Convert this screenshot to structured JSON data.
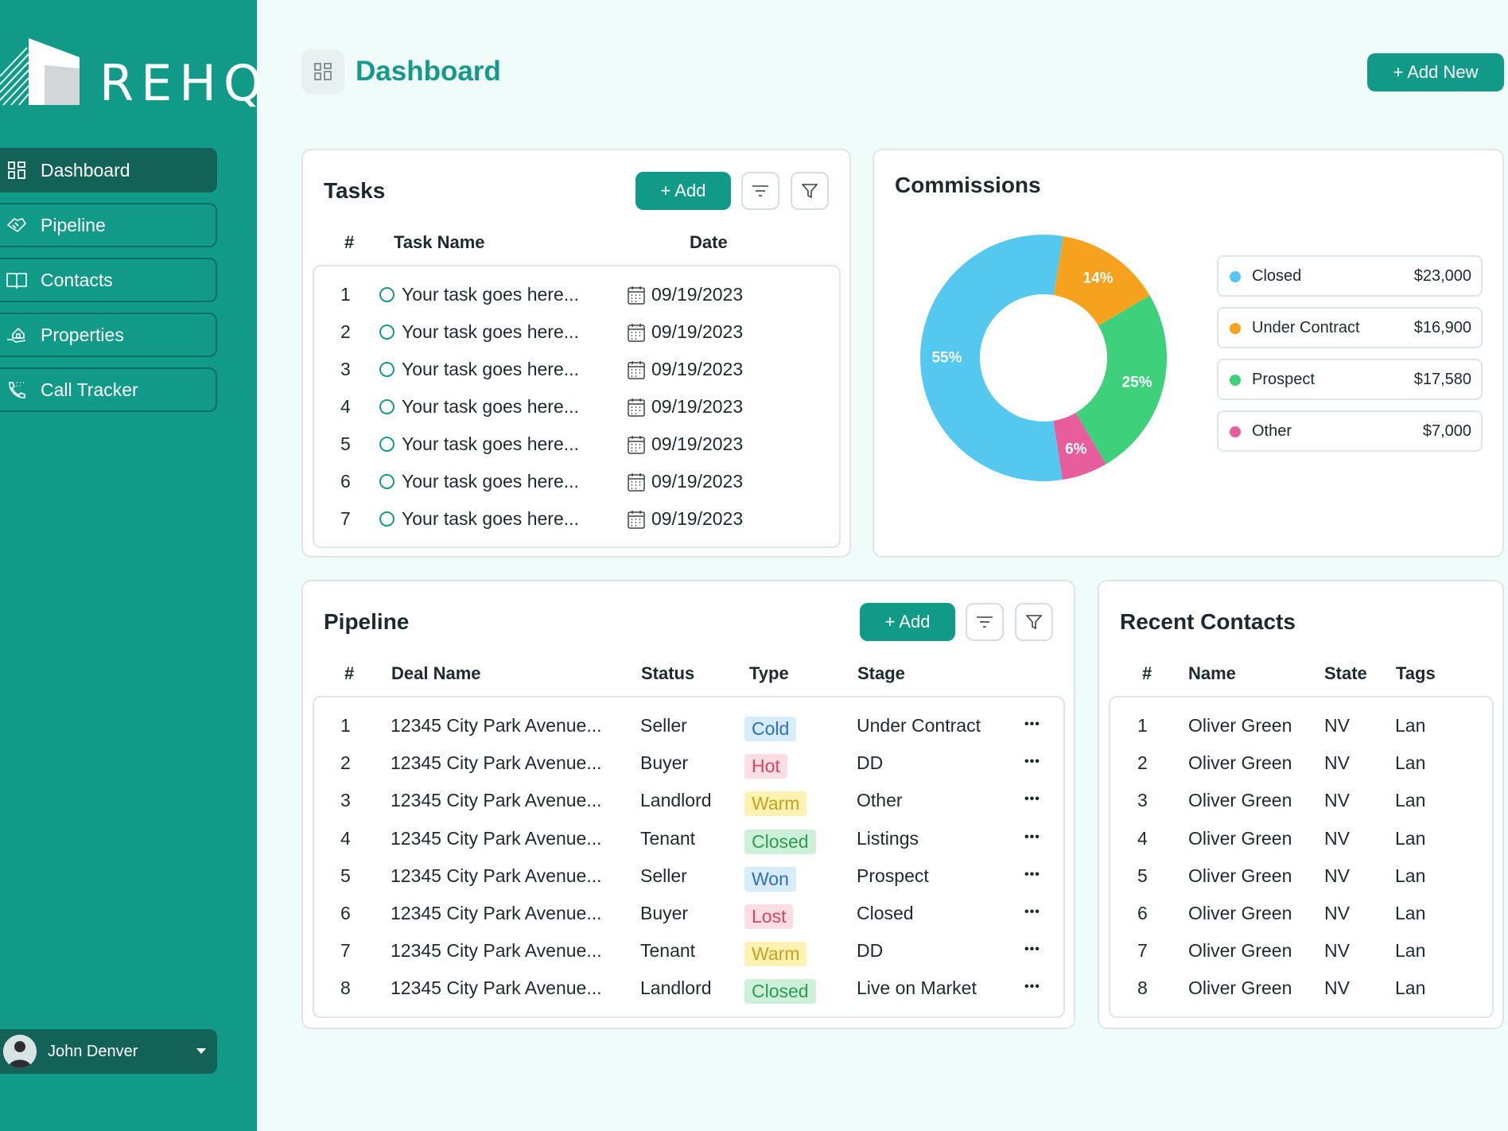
{
  "app": {
    "logo_text": "REHQ"
  },
  "sidebar": {
    "items": [
      {
        "label": "Dashboard",
        "icon": "grid-icon",
        "active": true
      },
      {
        "label": "Pipeline",
        "icon": "handshake-icon"
      },
      {
        "label": "Contacts",
        "icon": "book-icon"
      },
      {
        "label": "Properties",
        "icon": "house-hand-icon"
      },
      {
        "label": "Call Tracker",
        "icon": "phone-call-icon"
      }
    ],
    "user": {
      "name": "John Denver"
    }
  },
  "header": {
    "title": "Dashboard",
    "add_new_label": "+ Add New"
  },
  "tasks": {
    "title": "Tasks",
    "add_label": "+ Add",
    "columns": [
      "#",
      "Task Name",
      "Date"
    ],
    "rows": [
      {
        "num": "1",
        "name": "Your task goes here...",
        "date": "09/19/2023"
      },
      {
        "num": "2",
        "name": "Your task goes here...",
        "date": "09/19/2023"
      },
      {
        "num": "3",
        "name": "Your task goes here...",
        "date": "09/19/2023"
      },
      {
        "num": "4",
        "name": "Your task goes here...",
        "date": "09/19/2023"
      },
      {
        "num": "5",
        "name": "Your task goes here...",
        "date": "09/19/2023"
      },
      {
        "num": "6",
        "name": "Your task goes here...",
        "date": "09/19/2023"
      },
      {
        "num": "7",
        "name": "Your task goes here...",
        "date": "09/19/2023"
      }
    ]
  },
  "commissions": {
    "title": "Commissions",
    "legend": [
      {
        "name": "Closed",
        "value": "$23,000",
        "color": "#55c8f0"
      },
      {
        "name": "Under Contract",
        "value": "$16,900",
        "color": "#f7a21f"
      },
      {
        "name": "Prospect",
        "value": "$17,580",
        "color": "#3ed07a"
      },
      {
        "name": "Other",
        "value": "$7,000",
        "color": "#e85d9c"
      }
    ]
  },
  "chart_data": {
    "type": "pie",
    "categories": [
      "Closed",
      "Under Contract",
      "Prospect",
      "Other"
    ],
    "values": [
      55,
      14,
      25,
      6
    ],
    "labels": [
      "55%",
      "14%",
      "25%",
      "6%"
    ],
    "colors": [
      "#55c8f0",
      "#f7a21f",
      "#3ed07a",
      "#e85d9c"
    ]
  },
  "pipeline": {
    "title": "Pipeline",
    "add_label": "+ Add",
    "columns": [
      "#",
      "Deal Name",
      "Status",
      "Type",
      "Stage"
    ],
    "rows": [
      {
        "num": "1",
        "deal": "12345 City Park Avenue...",
        "status": "Seller",
        "type": "Cold",
        "stage": "Under Contract",
        "more": "•••"
      },
      {
        "num": "2",
        "deal": "12345 City Park Avenue...",
        "status": "Buyer",
        "type": "Hot",
        "stage": "DD",
        "more": "•••"
      },
      {
        "num": "3",
        "deal": "12345 City Park Avenue...",
        "status": "Landlord",
        "type": "Warm",
        "stage": "Other",
        "more": "•••"
      },
      {
        "num": "4",
        "deal": "12345 City Park Avenue...",
        "status": "Tenant",
        "type": "Closed",
        "stage": "Listings",
        "more": "•••"
      },
      {
        "num": "5",
        "deal": "12345 City Park Avenue...",
        "status": "Seller",
        "type": "Won",
        "stage": "Prospect",
        "more": "•••"
      },
      {
        "num": "6",
        "deal": "12345 City Park Avenue...",
        "status": "Buyer",
        "type": "Lost",
        "stage": "Closed",
        "more": "•••"
      },
      {
        "num": "7",
        "deal": "12345 City Park Avenue...",
        "status": "Tenant",
        "type": "Warm",
        "stage": "DD",
        "more": "•••"
      },
      {
        "num": "8",
        "deal": "12345 City Park Avenue...",
        "status": "Landlord",
        "type": "Closed",
        "stage": "Live on Market",
        "more": "•••"
      }
    ],
    "type_colors": {
      "Cold": {
        "bg": "#d6ecfb",
        "fg": "#2f6fb5"
      },
      "Hot": {
        "bg": "#fbdde3",
        "fg": "#d8465e"
      },
      "Warm": {
        "bg": "#fbf2b3",
        "fg": "#c7a21a"
      },
      "Closed": {
        "bg": "#cdf0d8",
        "fg": "#2f9b52"
      },
      "Won": {
        "bg": "#d6ecfb",
        "fg": "#2f6fb5"
      },
      "Lost": {
        "bg": "#fbdde3",
        "fg": "#d8465e"
      }
    }
  },
  "contacts": {
    "title": "Recent Contacts",
    "columns": [
      "#",
      "Name",
      "State",
      "Tags"
    ],
    "rows": [
      {
        "num": "1",
        "name": "Oliver Green",
        "state": "NV",
        "tag": "Lan"
      },
      {
        "num": "2",
        "name": "Oliver Green",
        "state": "NV",
        "tag": "Lan"
      },
      {
        "num": "3",
        "name": "Oliver Green",
        "state": "NV",
        "tag": "Lan"
      },
      {
        "num": "4",
        "name": "Oliver Green",
        "state": "NV",
        "tag": "Lan"
      },
      {
        "num": "5",
        "name": "Oliver Green",
        "state": "NV",
        "tag": "Lan"
      },
      {
        "num": "6",
        "name": "Oliver Green",
        "state": "NV",
        "tag": "Lan"
      },
      {
        "num": "7",
        "name": "Oliver Green",
        "state": "NV",
        "tag": "Lan"
      },
      {
        "num": "8",
        "name": "Oliver Green",
        "state": "NV",
        "tag": "Lan"
      }
    ]
  }
}
